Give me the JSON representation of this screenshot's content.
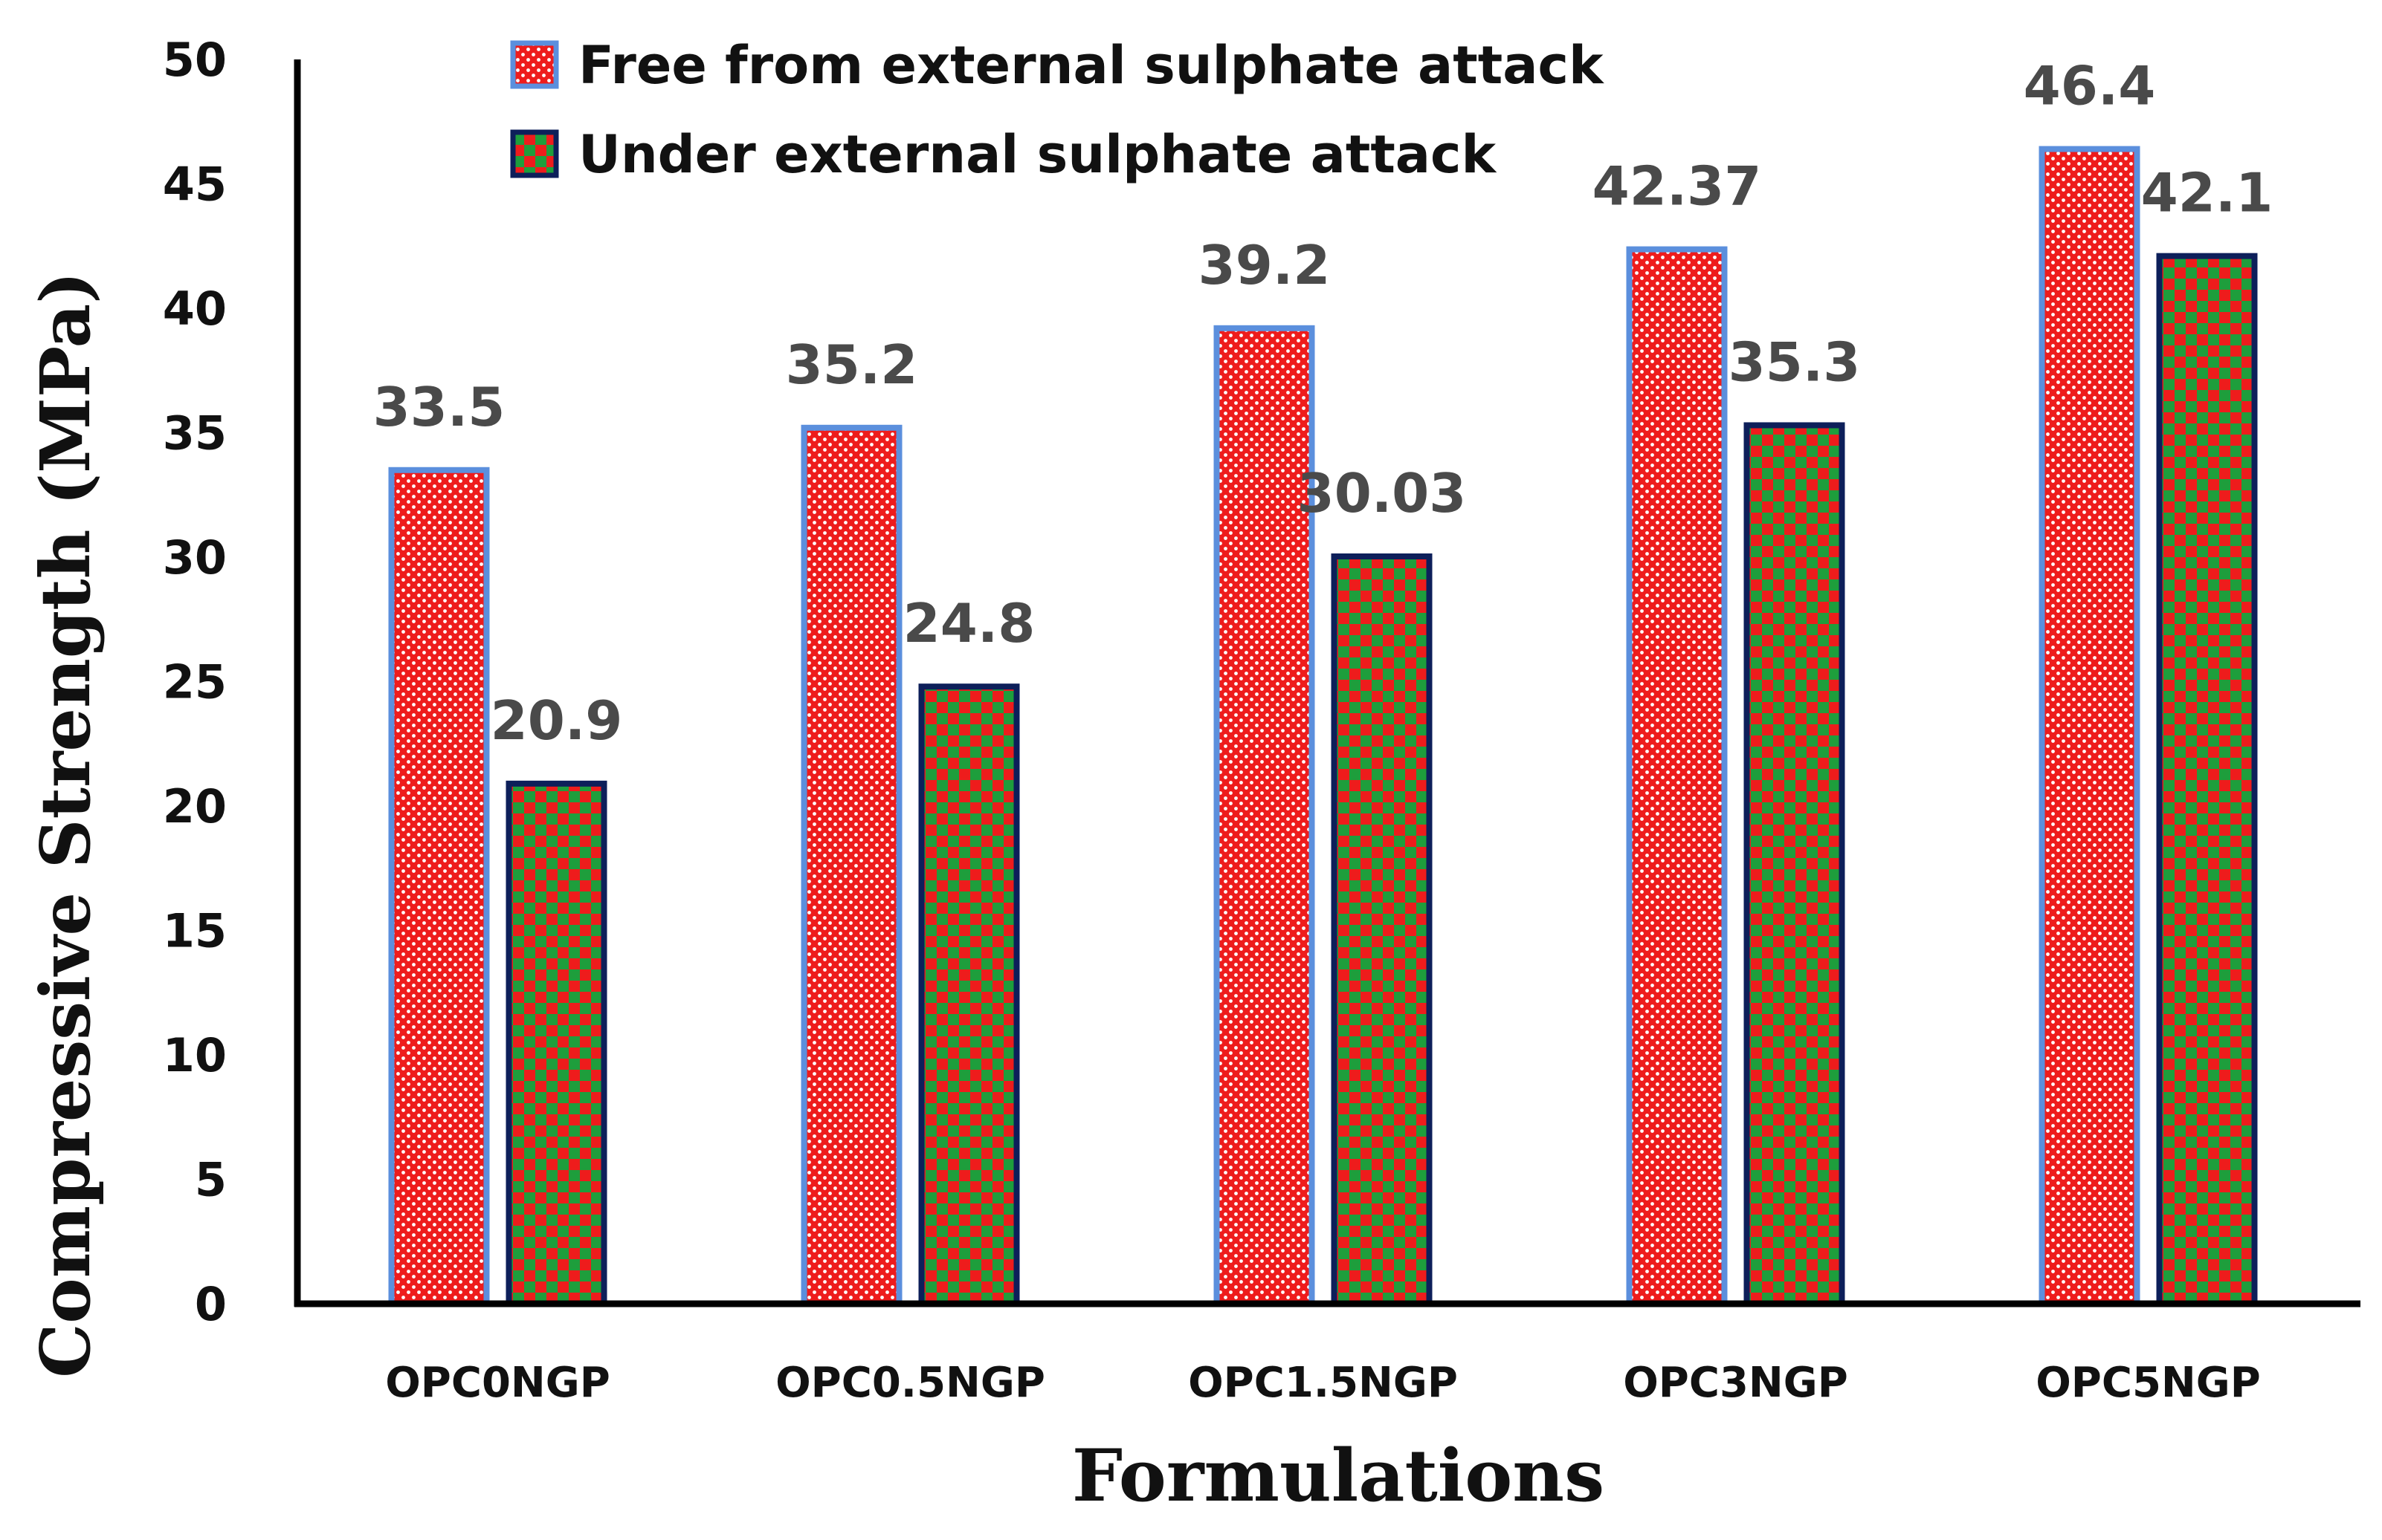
{
  "chart_data": {
    "type": "bar",
    "title": "",
    "xlabel": "Formulations",
    "ylabel": "Compressive Strength (MPa)",
    "ylim": [
      0,
      50
    ],
    "yticks": [
      0,
      5,
      10,
      15,
      20,
      25,
      30,
      35,
      40,
      45,
      50
    ],
    "grid": false,
    "legend_position": "top",
    "categories": [
      "OPC0NGP",
      "OPC0.5NGP",
      "OPC1.5NGP",
      "OPC3NGP",
      "OPC5NGP"
    ],
    "series": [
      {
        "name": "Free from external sulphate attack",
        "values": [
          33.5,
          35.2,
          39.2,
          42.37,
          46.4
        ],
        "labels": [
          "33.5",
          "35.2",
          "39.2",
          "42.37",
          "46.4"
        ],
        "pattern": "red-white-dots",
        "fill_color": "#ee1c1c",
        "border_color": "#5b8fdd"
      },
      {
        "name": "Under external sulphate attack",
        "values": [
          20.9,
          24.8,
          30.03,
          35.3,
          42.1
        ],
        "labels": [
          "20.9",
          "24.8",
          "30.03",
          "35.3",
          "42.1"
        ],
        "pattern": "red-green-checker",
        "fill_color": "#1e9e3c",
        "border_color": "#0d1f5a"
      }
    ]
  }
}
